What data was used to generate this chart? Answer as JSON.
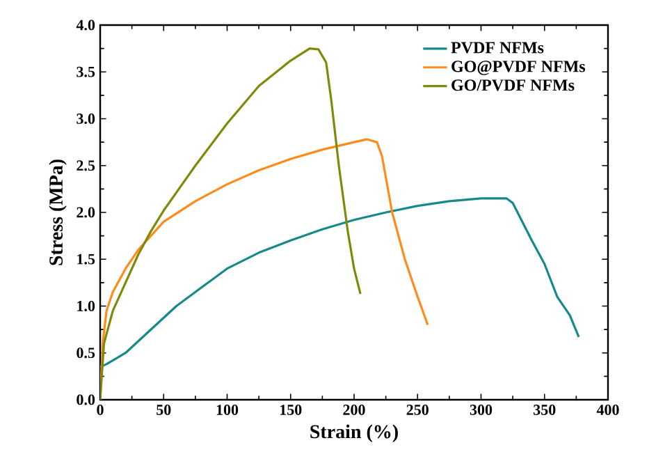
{
  "chart_data": {
    "type": "line",
    "xlabel": "Strain (%)",
    "ylabel": "Stress (MPa)",
    "xlim": [
      0,
      400
    ],
    "xticks": [
      0,
      50,
      100,
      150,
      200,
      250,
      300,
      350,
      400
    ],
    "ylim": [
      0,
      4.0
    ],
    "yticks": [
      {
        "value": 0,
        "label": "0.0"
      },
      {
        "value": 0.5,
        "label": "0.5"
      },
      {
        "value": 1,
        "label": "1.0"
      },
      {
        "value": 1.5,
        "label": "1.5"
      },
      {
        "value": 2,
        "label": "2.0"
      },
      {
        "value": 2.5,
        "label": "2.5"
      },
      {
        "value": 3,
        "label": "3.0"
      },
      {
        "value": 3.5,
        "label": "3.5"
      },
      {
        "value": 4,
        "label": "4.0"
      }
    ],
    "legend": "top right",
    "grid": false,
    "marker": "none",
    "line_style": "solid",
    "series": [
      {
        "name": "PVDF NFMs",
        "color": "#16898a",
        "x": [
          0,
          5,
          20,
          40,
          60,
          80,
          100,
          125,
          150,
          175,
          200,
          225,
          250,
          275,
          300,
          320,
          325,
          340,
          350,
          360,
          370,
          377
        ],
        "values": [
          0.35,
          0.38,
          0.5,
          0.75,
          1.0,
          1.2,
          1.4,
          1.57,
          1.7,
          1.82,
          1.92,
          2.0,
          2.07,
          2.12,
          2.15,
          2.15,
          2.1,
          1.7,
          1.45,
          1.1,
          0.9,
          0.67
        ]
      },
      {
        "name": "GO@PVDF NFMs",
        "color": "#ff8c1a",
        "x": [
          0,
          2,
          5,
          10,
          20,
          30,
          40,
          50,
          75,
          100,
          125,
          150,
          175,
          200,
          210,
          218,
          222,
          230,
          240,
          250,
          258
        ],
        "values": [
          0,
          0.6,
          0.95,
          1.15,
          1.4,
          1.6,
          1.75,
          1.9,
          2.12,
          2.3,
          2.45,
          2.57,
          2.67,
          2.75,
          2.78,
          2.75,
          2.6,
          2.0,
          1.5,
          1.1,
          0.8
        ]
      },
      {
        "name": "GO/PVDF NFMs",
        "color": "#808a0a",
        "x": [
          0,
          3,
          10,
          20,
          30,
          40,
          50,
          75,
          100,
          125,
          150,
          165,
          172,
          178,
          182,
          188,
          195,
          200,
          205
        ],
        "values": [
          0,
          0.6,
          0.95,
          1.25,
          1.55,
          1.8,
          2.02,
          2.5,
          2.95,
          3.35,
          3.62,
          3.75,
          3.74,
          3.6,
          3.2,
          2.5,
          1.8,
          1.4,
          1.13
        ]
      }
    ]
  }
}
